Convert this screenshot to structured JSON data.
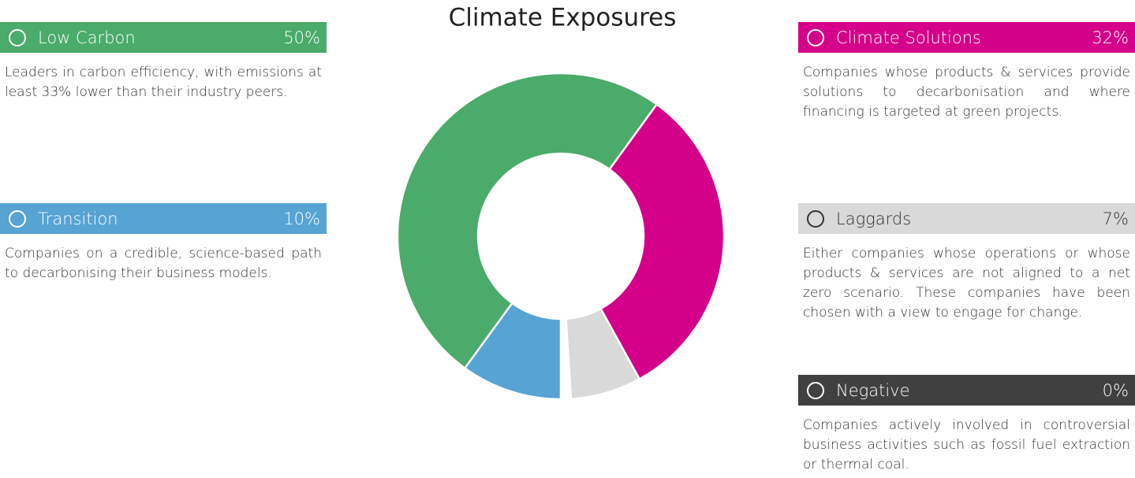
{
  "chart_data": {
    "type": "pie",
    "title": "Climate Exposures",
    "categories": [
      "Transition",
      "Low Carbon",
      "Climate Solutions",
      "Laggards",
      "Negative"
    ],
    "values": [
      10,
      50,
      32,
      7,
      0
    ],
    "value_labels": [
      "10%",
      "50%",
      "32%",
      "7%",
      "0%"
    ],
    "colors": [
      "#56a3d4",
      "#4aab6a",
      "#d4008a",
      "#d9d9d9",
      "#404040"
    ],
    "descriptions": [
      "Companies on a credible, science-based path to decarbonising their business models.",
      "Leaders in carbon efficiency, with emissions at least 33% lower than their industry peers.",
      "Companies whose products & services provide solutions to decarbonisation and where financing is targeted at green projects.",
      "Either companies whose operations or whose products & services are not aligned to a net zero scenario. These companies have been chosen with a view to engage for change.",
      "Companies actively involved in controversial business activities such as fossil fuel extraction or thermal coal."
    ]
  }
}
